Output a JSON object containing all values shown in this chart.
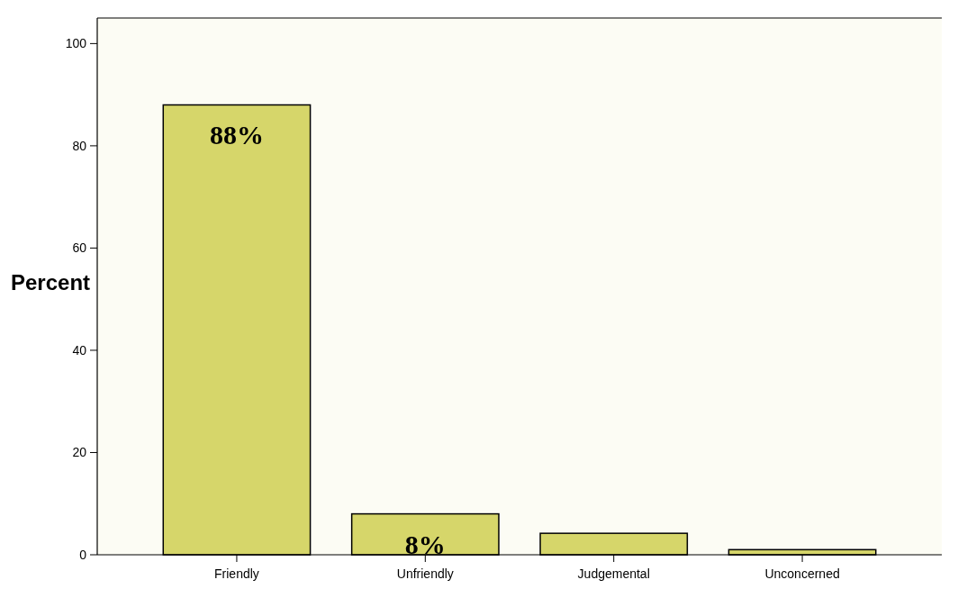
{
  "chart_data": {
    "type": "bar",
    "ylabel": "Percent",
    "categories": [
      "Friendly",
      "Unfriendly",
      "Judgemental",
      "Unconcerned"
    ],
    "values": [
      88,
      8,
      4.2,
      1
    ],
    "value_labels": [
      "88%",
      "8%",
      null,
      null
    ],
    "color": "#d6d66a",
    "ylim": [
      0,
      105
    ],
    "yticks": [
      0,
      20,
      40,
      60,
      80,
      100
    ],
    "grid": false
  }
}
